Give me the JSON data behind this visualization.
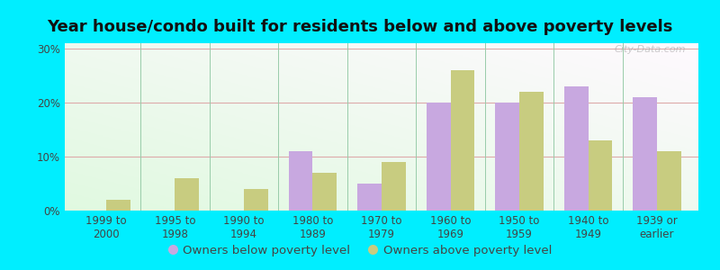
{
  "title": "Year house/condo built for residents below and above poverty levels",
  "categories": [
    "1999 to\n2000",
    "1995 to\n1998",
    "1990 to\n1994",
    "1980 to\n1989",
    "1970 to\n1979",
    "1960 to\n1969",
    "1950 to\n1959",
    "1940 to\n1949",
    "1939 or\nearlier"
  ],
  "below_poverty": [
    0.0,
    0.0,
    0.0,
    11.0,
    5.0,
    20.0,
    20.0,
    23.0,
    21.0
  ],
  "above_poverty": [
    2.0,
    6.0,
    4.0,
    7.0,
    9.0,
    26.0,
    22.0,
    13.0,
    11.0
  ],
  "below_color": "#c8a8e0",
  "above_color": "#c8cc80",
  "outer_background": "#00eeff",
  "ylim": [
    0,
    31
  ],
  "yticks": [
    0,
    10,
    20,
    30
  ],
  "ytick_labels": [
    "0%",
    "10%",
    "20%",
    "30%"
  ],
  "legend_below": "Owners below poverty level",
  "legend_above": "Owners above poverty level",
  "title_fontsize": 13,
  "tick_fontsize": 8.5,
  "legend_fontsize": 9.5,
  "bar_width": 0.35,
  "watermark": "City-Data.com",
  "grid_color": "#ddaaaa",
  "separator_color": "#99ccaa",
  "tick_color": "#444444"
}
